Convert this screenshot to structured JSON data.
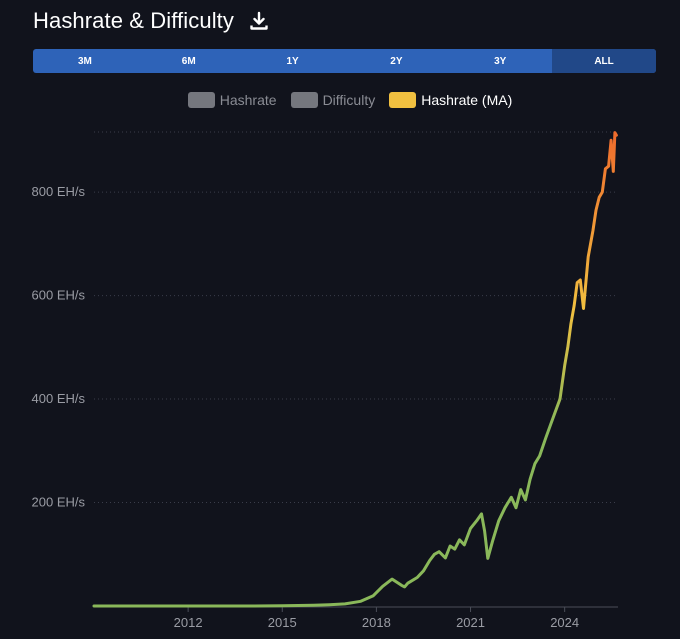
{
  "header": {
    "title": "Hashrate & Difficulty",
    "download_icon": "download-icon"
  },
  "ranges": {
    "options": [
      "3M",
      "6M",
      "1Y",
      "2Y",
      "3Y",
      "ALL"
    ],
    "active": "ALL"
  },
  "colors": {
    "background": "#11131c",
    "range_bar": "#2e63b8",
    "range_active": "#214888",
    "legend_off": "#75777e",
    "ma_green": "#8ab85a",
    "ma_yellow": "#f1c040",
    "ma_orange": "#ef6a2c"
  },
  "chart_data": {
    "type": "line",
    "title": "",
    "xlabel": "",
    "ylabel": "",
    "grid": true,
    "legend_position": "top-center",
    "legend": [
      {
        "name": "Hashrate",
        "active": false
      },
      {
        "name": "Difficulty",
        "active": false
      },
      {
        "name": "Hashrate (MA)",
        "active": true
      }
    ],
    "x_ticks": [
      "2012",
      "2015",
      "2018",
      "2021",
      "2024"
    ],
    "y_ticks": [
      "200 EH/s",
      "400 EH/s",
      "600 EH/s",
      "800 EH/s"
    ],
    "y_tick_values": [
      200,
      400,
      600,
      800
    ],
    "xlim": [
      2009.0,
      2025.7
    ],
    "ylim": [
      0,
      920
    ],
    "series": [
      {
        "name": "Hashrate (MA)",
        "x": [
          2009.0,
          2012.0,
          2014.0,
          2015.0,
          2016.0,
          2016.5,
          2017.0,
          2017.5,
          2017.9,
          2018.2,
          2018.5,
          2018.8,
          2018.9,
          2019.0,
          2019.3,
          2019.5,
          2019.7,
          2019.85,
          2020.0,
          2020.2,
          2020.35,
          2020.5,
          2020.65,
          2020.8,
          2021.0,
          2021.2,
          2021.35,
          2021.45,
          2021.55,
          2021.7,
          2021.9,
          2022.1,
          2022.3,
          2022.45,
          2022.6,
          2022.75,
          2022.9,
          2023.05,
          2023.2,
          2023.4,
          2023.55,
          2023.7,
          2023.85,
          2024.0,
          2024.1,
          2024.2,
          2024.3,
          2024.4,
          2024.5,
          2024.6,
          2024.75,
          2024.9,
          2025.0,
          2025.1,
          2025.2,
          2025.3,
          2025.4,
          2025.48,
          2025.55,
          2025.6,
          2025.65
        ],
        "values": [
          0,
          0,
          0,
          0.5,
          1.5,
          2.5,
          4,
          9,
          20,
          38,
          52,
          40,
          37,
          44,
          55,
          68,
          88,
          100,
          105,
          93,
          116,
          110,
          128,
          118,
          150,
          165,
          178,
          145,
          92,
          125,
          165,
          190,
          210,
          190,
          225,
          205,
          245,
          275,
          290,
          325,
          350,
          375,
          400,
          465,
          500,
          545,
          580,
          625,
          630,
          575,
          675,
          725,
          765,
          790,
          800,
          845,
          850,
          900,
          840,
          915,
          910
        ]
      }
    ]
  }
}
